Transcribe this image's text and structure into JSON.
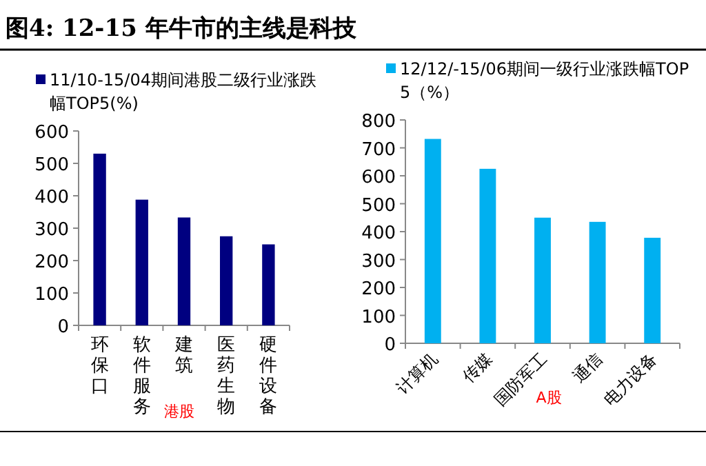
{
  "chart_data": [
    {
      "type": "bar",
      "title": "图4:  12-15 年牛市的主线是科技",
      "categories": [
        "环保口",
        "软件服务",
        "建筑",
        "医药生物",
        "硬件设备"
      ],
      "series": [
        {
          "name": "11/10-15/04期间港股二级行业涨跌幅TOP5(%)",
          "color": "#000080",
          "values": [
            530,
            388,
            333,
            275,
            250
          ]
        }
      ],
      "ylim": [
        0,
        600
      ],
      "yticks": [
        0,
        100,
        200,
        300,
        400,
        500,
        600
      ],
      "legend": "top",
      "grid": false,
      "annotations": [
        "港股"
      ]
    },
    {
      "type": "bar",
      "categories": [
        "计算机",
        "传媒",
        "国防军工",
        "通信",
        "电力设备"
      ],
      "series": [
        {
          "name": "12/12/-15/06期间一级行业涨跌幅TOP5（%）",
          "color": "#00b0f0",
          "values": [
            732,
            625,
            450,
            435,
            378
          ]
        }
      ],
      "ylim": [
        0,
        800
      ],
      "yticks": [
        0,
        100,
        200,
        300,
        400,
        500,
        600,
        700,
        800
      ],
      "legend": "top",
      "grid": false,
      "annotations": [
        "A股"
      ]
    }
  ]
}
